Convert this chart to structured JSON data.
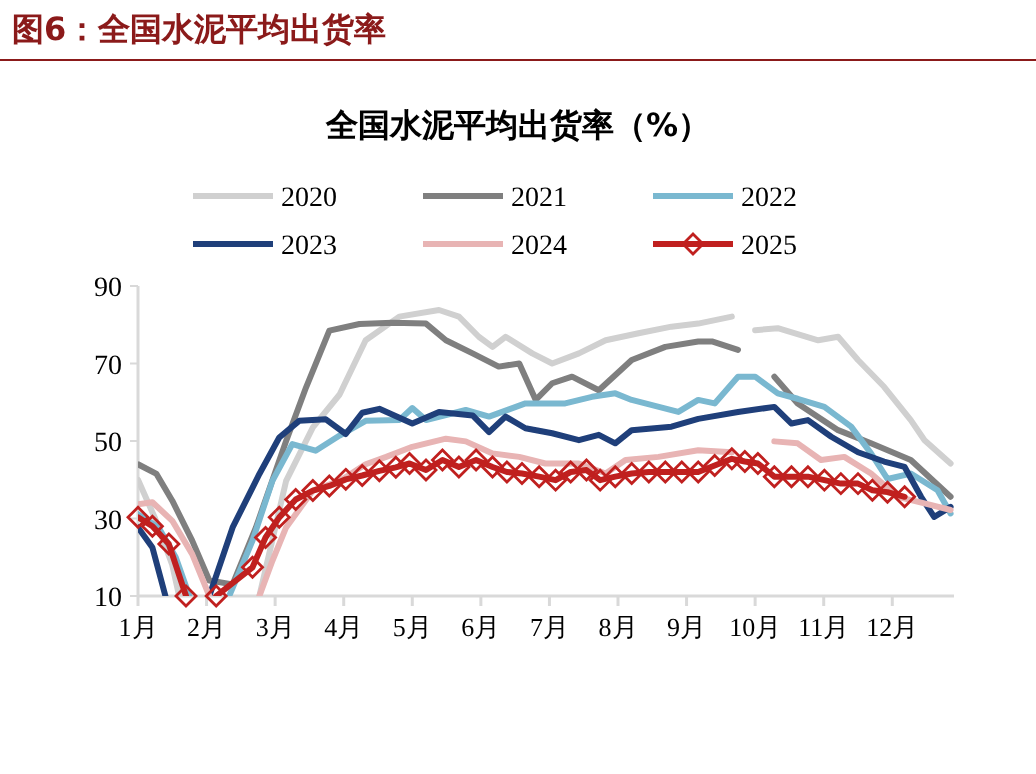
{
  "chart_data": {
    "type": "line",
    "title": "全国水泥平均出货率（%）",
    "annotations": [
      "图6：全国水泥平均出货率"
    ],
    "xlim": [
      1,
      12.9
    ],
    "xticks": [
      {
        "value": 1,
        "label": "1月"
      },
      {
        "value": 2,
        "label": "2月"
      },
      {
        "value": 3,
        "label": "3月"
      },
      {
        "value": 4,
        "label": "4月"
      },
      {
        "value": 5,
        "label": "5月"
      },
      {
        "value": 6,
        "label": "6月"
      },
      {
        "value": 7,
        "label": "7月"
      },
      {
        "value": 8,
        "label": "8月"
      },
      {
        "value": 9,
        "label": "9月"
      },
      {
        "value": 10,
        "label": "10月"
      },
      {
        "value": 11,
        "label": "11月"
      },
      {
        "value": 12,
        "label": "12月"
      }
    ],
    "ylim": [
      10,
      90
    ],
    "yticks": [
      10,
      30,
      50,
      70,
      90
    ],
    "legend": "top",
    "series": [
      {
        "name": "2020",
        "color": "#d0d0d0",
        "x": [
          1.0,
          1.25,
          1.5,
          1.6,
          2.5,
          2.77,
          3.16,
          3.55,
          3.94,
          4.32,
          4.81,
          5.39,
          5.68,
          5.97,
          6.17,
          6.36,
          6.75,
          7.04,
          7.43,
          7.82,
          8.3,
          8.78,
          9.17,
          9.66,
          9.8,
          10.0,
          10.33,
          10.92,
          11.21,
          11.5,
          11.88,
          12.27,
          12.47,
          12.85
        ],
        "values": [
          40,
          30,
          18,
          10,
          null,
          10,
          39.7,
          53.5,
          62,
          76,
          82.1,
          83.8,
          82.1,
          76.9,
          74.3,
          76.9,
          72.6,
          70,
          72.6,
          76,
          77.8,
          79.5,
          80.3,
          82.1,
          null,
          78.6,
          79.1,
          76,
          76.9,
          70.9,
          64,
          55.4,
          50.2,
          44.2
        ]
      },
      {
        "name": "2021",
        "color": "#7f7f7f",
        "x": [
          1.0,
          1.27,
          1.5,
          1.79,
          2.04,
          2.38,
          2.72,
          3.16,
          3.45,
          3.79,
          4.23,
          4.71,
          5.2,
          5.49,
          5.88,
          6.26,
          6.56,
          6.8,
          7.04,
          7.33,
          7.72,
          8.2,
          8.69,
          9.17,
          9.37,
          9.75,
          10.0,
          10.28,
          10.62,
          11.21,
          11.69,
          12.27,
          12.85
        ],
        "values": [
          44,
          41.5,
          34.6,
          24.3,
          14,
          13,
          27.7,
          50,
          63.8,
          78.5,
          80.2,
          80.5,
          80.3,
          76,
          72.6,
          69.2,
          70,
          60.6,
          64.9,
          66.6,
          63.1,
          70.9,
          74.3,
          75.7,
          75.7,
          73.5,
          null,
          66.6,
          59.7,
          52.8,
          49.4,
          45.1,
          35.6
        ]
      },
      {
        "name": "2022",
        "color": "#7ab8d0",
        "x": [
          1.0,
          1.3,
          1.55,
          1.75,
          2.0,
          2.33,
          2.67,
          2.96,
          3.25,
          3.59,
          3.94,
          4.32,
          4.81,
          5.0,
          5.2,
          5.78,
          6.12,
          6.65,
          7.23,
          7.62,
          7.96,
          8.2,
          8.88,
          9.17,
          9.41,
          9.75,
          10.0,
          10.33,
          10.62,
          11.01,
          11.4,
          11.69,
          11.93,
          12.27,
          12.66,
          12.85
        ],
        "values": [
          31.1,
          27.7,
          20,
          10,
          null,
          10,
          24.3,
          39.7,
          49.2,
          47.5,
          51.4,
          55.2,
          55.4,
          58.5,
          55.4,
          58,
          56.3,
          59.7,
          59.7,
          61.4,
          62.3,
          60.6,
          57.5,
          60.6,
          59.7,
          66.6,
          66.6,
          62.3,
          60.9,
          58.8,
          53.7,
          46.8,
          40.2,
          41.6,
          37.3,
          31.3
        ]
      },
      {
        "name": "2023",
        "color": "#1f3f7a",
        "x": [
          1.0,
          1.21,
          1.4,
          1.7,
          2.04,
          2.38,
          2.77,
          3.06,
          3.35,
          3.74,
          4.03,
          4.27,
          4.52,
          5.0,
          5.39,
          5.88,
          6.12,
          6.36,
          6.65,
          7.04,
          7.43,
          7.72,
          7.96,
          8.2,
          8.78,
          9.17,
          9.75,
          10.28,
          10.53,
          10.77,
          11.11,
          11.5,
          11.88,
          12.18,
          12.42,
          12.61,
          12.85
        ],
        "values": [
          27.7,
          22.5,
          10,
          null,
          10,
          27.7,
          41.5,
          50.9,
          55.2,
          55.6,
          51.8,
          57.3,
          58.3,
          54.5,
          57.5,
          56.6,
          52.3,
          56.3,
          53.3,
          52,
          50.2,
          51.6,
          49.4,
          52.8,
          53.7,
          55.7,
          57.5,
          58.8,
          54.5,
          55.4,
          51.1,
          47.1,
          44.7,
          43.3,
          35.6,
          30.4,
          33
        ]
      },
      {
        "name": "2024",
        "color": "#e8b4b4",
        "x": [
          1.0,
          1.21,
          1.5,
          1.79,
          2.04,
          2.4,
          2.77,
          2.96,
          3.16,
          3.55,
          3.94,
          4.32,
          4.62,
          5.0,
          5.49,
          5.78,
          6.17,
          6.56,
          6.94,
          7.43,
          7.82,
          8.11,
          8.59,
          9.17,
          9.66,
          10.0,
          10.28,
          10.62,
          10.96,
          11.3,
          11.69,
          12.08,
          12.47,
          12.85
        ],
        "values": [
          33.7,
          34.2,
          29.4,
          20.8,
          10,
          null,
          10,
          19.1,
          27.7,
          37.2,
          39.7,
          44,
          45.9,
          48.5,
          50.6,
          49.9,
          46.8,
          45.9,
          44.2,
          44.2,
          41.6,
          45.1,
          45.9,
          47.6,
          47.1,
          null,
          49.9,
          49.4,
          45.1,
          45.9,
          41.6,
          35.6,
          33.9,
          32.2
        ]
      },
      {
        "name": "2025",
        "color": "#c0201f",
        "marker": "diamond",
        "x": [
          1.0,
          1.21,
          1.45,
          1.7,
          1.9,
          2.14,
          2.67,
          2.86,
          3.06,
          3.3,
          3.55,
          3.79,
          4.03,
          4.27,
          4.52,
          4.76,
          4.96,
          5.2,
          5.44,
          5.68,
          5.93,
          6.17,
          6.38,
          6.6,
          6.85,
          7.09,
          7.31,
          7.54,
          7.74,
          7.96,
          8.2,
          8.45,
          8.69,
          8.93,
          9.17,
          9.41,
          9.66,
          9.85,
          10.04,
          10.28,
          10.53,
          10.77,
          11.01,
          11.25,
          11.5,
          11.71,
          11.93,
          12.18
        ],
        "values": [
          30.3,
          28,
          23.4,
          10,
          null,
          10,
          17.4,
          25.1,
          30.3,
          34.9,
          37.2,
          38.4,
          40.1,
          41.1,
          42.3,
          43.2,
          44.2,
          42.5,
          45.1,
          43.3,
          45.1,
          43.3,
          42,
          41.6,
          40.8,
          39.9,
          42,
          42.5,
          39.9,
          40.8,
          41.6,
          42,
          42,
          42,
          42,
          43.7,
          45.4,
          44.7,
          44.2,
          40.8,
          40.8,
          40.8,
          39.9,
          39,
          39,
          37.3,
          36.8,
          35.6
        ]
      }
    ]
  }
}
